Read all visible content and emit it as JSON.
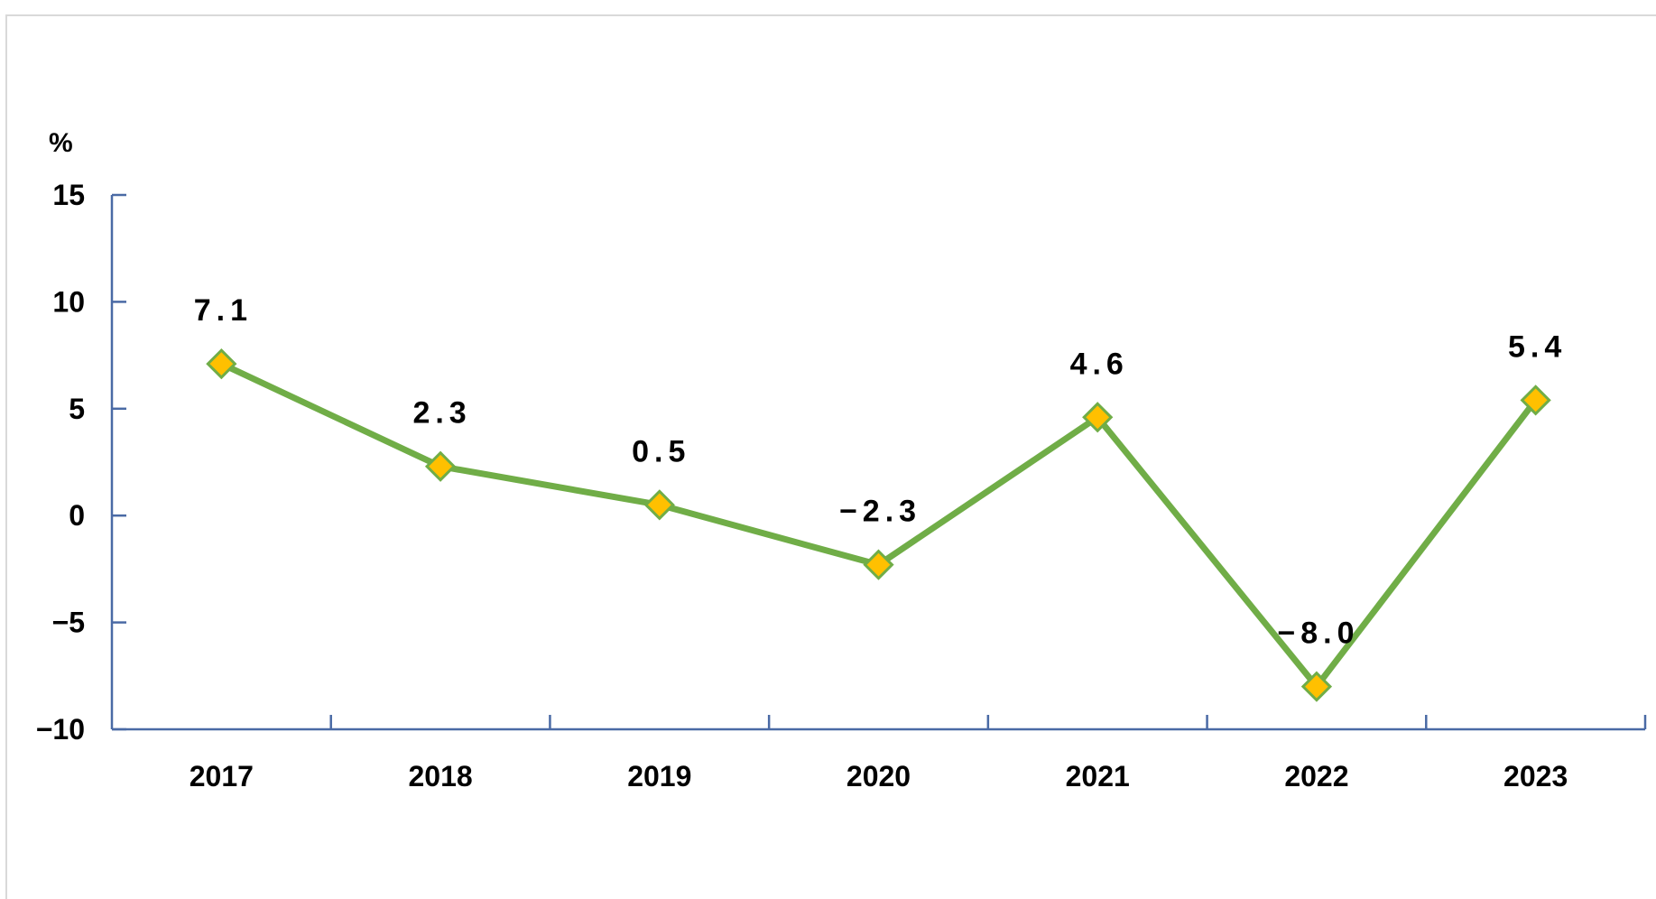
{
  "chart_data": {
    "type": "line",
    "categories": [
      "2017",
      "2018",
      "2019",
      "2020",
      "2021",
      "2022",
      "2023"
    ],
    "series": [
      {
        "values": [
          7.1,
          2.3,
          0.5,
          -2.3,
          4.6,
          -8.0,
          5.4
        ],
        "labels": [
          "7.1",
          "2.3",
          "0.5",
          "−2.3",
          "4.6",
          "−8.0",
          "5.4"
        ]
      }
    ],
    "ylabel": "%",
    "ylim": [
      -10,
      15
    ],
    "yticks": [
      15,
      10,
      5,
      0,
      -5,
      -10
    ],
    "ytick_labels": [
      "15",
      "10",
      "5",
      "0",
      "−5",
      "−10"
    ],
    "grid": false,
    "colors": {
      "line": "#70ad47",
      "marker_fill": "#ffc000",
      "axis": "#4a6aa5"
    }
  }
}
